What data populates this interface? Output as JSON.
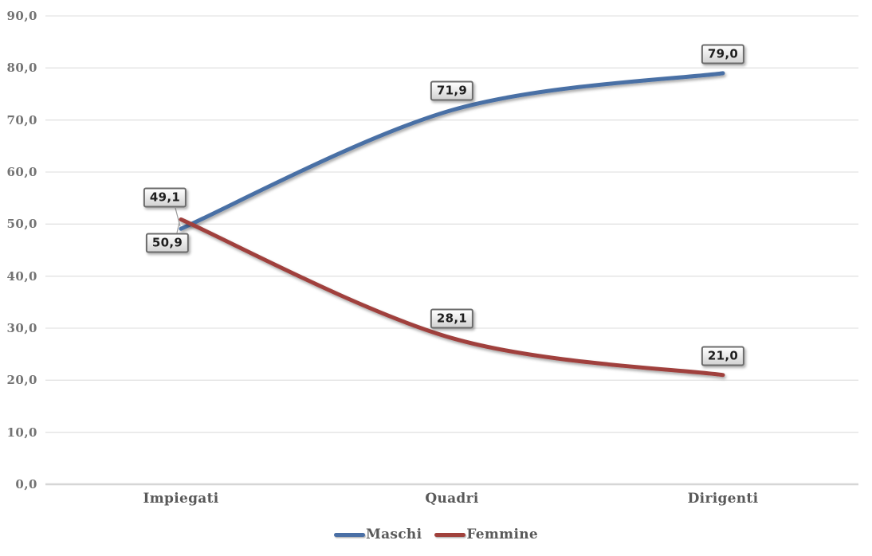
{
  "chart_data": {
    "type": "line",
    "title": "",
    "categories": [
      "Impiegati",
      "Quadri",
      "Dirigenti"
    ],
    "series": [
      {
        "name": "Maschi",
        "color": "#4a6fa5",
        "values": [
          49.1,
          71.9,
          79.0
        ],
        "point_labels": [
          "49,1",
          "71,9",
          "79,0"
        ]
      },
      {
        "name": "Femmine",
        "color": "#a0413c",
        "values": [
          50.9,
          28.1,
          21.0
        ],
        "point_labels": [
          "50,9",
          "28,1",
          "21,0"
        ]
      }
    ],
    "ylim": [
      0,
      90
    ],
    "y_step": 10,
    "y_tick_labels": [
      "0,0",
      "10,0",
      "20,0",
      "30,0",
      "40,0",
      "50,0",
      "60,0",
      "70,0",
      "80,0",
      "90,0"
    ],
    "smoothed": true,
    "grid": true,
    "legend_position": "bottom",
    "colors": {
      "background": "#ffffff",
      "gridline": "#e3e3e3",
      "axis_line": "#d6d6d6",
      "tick_text": "#737373",
      "category_text": "#595959",
      "legend_text": "#595959",
      "label_text": "#1f1f1f",
      "leader_line": "#9c9c9c"
    }
  }
}
